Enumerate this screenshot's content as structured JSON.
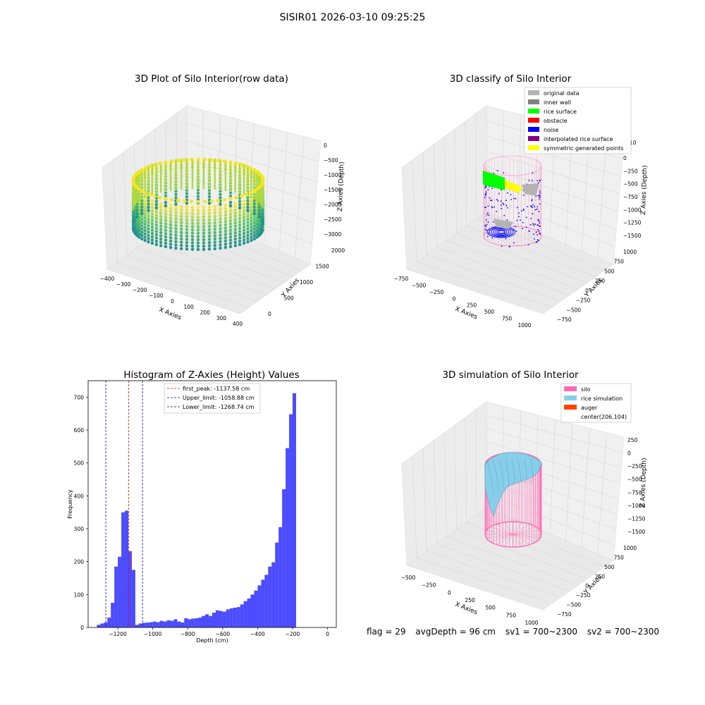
{
  "figure": {
    "suptitle": "SISIR01 2026-03-10 09:25:25"
  },
  "panels": {
    "raw": {
      "title": "3D Plot of Silo Interior(row data)",
      "xlabel": "X Axies",
      "ylabel": "Y Axies",
      "zlabel": "Z Axies (Depth)",
      "xticks": [
        "−400",
        "−300",
        "−200",
        "−100",
        "0",
        "100",
        "200",
        "300",
        "400"
      ],
      "yticks": [
        "0",
        "500",
        "1000",
        "1500",
        "2000"
      ],
      "zticks": [
        "0",
        "−500",
        "−1000",
        "−1500",
        "−2000",
        "−2500",
        "−3000"
      ]
    },
    "classify": {
      "title": "3D classify of Silo Interior",
      "xlabel": "X Axies",
      "ylabel": "Y Axies",
      "zlabel": "Z Axies (Depth)",
      "xticks": [
        "−750",
        "−500",
        "−250",
        "0",
        "250",
        "500",
        "750",
        "1000"
      ],
      "yticks": [
        "−750",
        "−500",
        "−250",
        "0",
        "250",
        "500",
        "750",
        "1000"
      ],
      "zticks": [
        "0",
        "−250",
        "−500",
        "−750",
        "−1000",
        "−1250",
        "−1500"
      ],
      "ztick_top": "10",
      "legend": [
        {
          "label": "original data",
          "color": "#b3b3b3"
        },
        {
          "label": "inner wall",
          "color": "#808080"
        },
        {
          "label": "rice surface",
          "color": "#00ff00"
        },
        {
          "label": "obstacle",
          "color": "#ff0000"
        },
        {
          "label": "noise",
          "color": "#0000ff"
        },
        {
          "label": "interpolated rice surface",
          "color": "#800080"
        },
        {
          "label": "symmetric generated points",
          "color": "#ffff00"
        }
      ]
    },
    "simulation": {
      "title": "3D simulation of Silo Interior",
      "xlabel": "X Axies",
      "ylabel": "Y Axies",
      "zlabel": "Z Axies (Depth)",
      "xticks": [
        "−500",
        "−250",
        "0",
        "250",
        "500",
        "750",
        "1000"
      ],
      "yticks": [
        "−750",
        "−500",
        "−250",
        "0",
        "250",
        "500",
        "750",
        "1000"
      ],
      "zticks": [
        "250",
        "0",
        "−250",
        "−500",
        "−750",
        "−1000",
        "−1250",
        "−1500"
      ],
      "legend": [
        {
          "label": "silo",
          "color": "#ff69b4"
        },
        {
          "label": "rice simulation",
          "color": "#87ceeb"
        },
        {
          "label": "auger",
          "color": "#ff4500"
        },
        {
          "label": "center(206,104)",
          "color": ""
        }
      ]
    },
    "footer": {
      "flag": "flag = 29",
      "avg": "avgDepth = 96 cm",
      "sv1": "sv1 = 700~2300",
      "sv2": "sv2 = 700~2300"
    }
  },
  "chart_data": [
    {
      "type": "bar",
      "title": "Histogram of Z-Axies (Height) Values",
      "xlabel": "Depth (cm)",
      "ylabel": "Frequency",
      "xlim": [
        -1370,
        50
      ],
      "ylim": [
        0,
        750
      ],
      "xticks": [
        -1200,
        -1000,
        -800,
        -600,
        -400,
        -200,
        0
      ],
      "xtick_labels": [
        "−1200",
        "−1000",
        "−800",
        "−600",
        "−400",
        "−200",
        "0"
      ],
      "yticks": [
        0,
        100,
        200,
        300,
        400,
        500,
        600,
        700
      ],
      "ytick_labels": [
        "0",
        "100",
        "200",
        "300",
        "400",
        "500",
        "600",
        "700"
      ],
      "bar_color": "#0000ff",
      "bin_width": 20,
      "bin_starts": [
        -1320,
        -1300,
        -1280,
        -1260,
        -1240,
        -1220,
        -1200,
        -1180,
        -1160,
        -1140,
        -1120,
        -1100,
        -1080,
        -1060,
        -1040,
        -1020,
        -1000,
        -980,
        -960,
        -940,
        -920,
        -900,
        -880,
        -860,
        -840,
        -820,
        -800,
        -780,
        -760,
        -740,
        -720,
        -700,
        -680,
        -660,
        -640,
        -620,
        -600,
        -580,
        -560,
        -540,
        -520,
        -500,
        -480,
        -460,
        -440,
        -420,
        -400,
        -380,
        -360,
        -340,
        -320,
        -300,
        -280,
        -260,
        -240,
        -220,
        -200,
        -180,
        -160,
        -140,
        -120,
        -100,
        -80,
        -60,
        -40,
        -20
      ],
      "values": [
        8,
        12,
        15,
        30,
        75,
        185,
        215,
        350,
        355,
        232,
        175,
        8,
        12,
        14,
        15,
        16,
        18,
        16,
        20,
        18,
        22,
        20,
        25,
        18,
        15,
        28,
        25,
        27,
        28,
        30,
        35,
        40,
        35,
        45,
        52,
        50,
        48,
        55,
        58,
        60,
        62,
        70,
        80,
        88,
        100,
        112,
        128,
        145,
        160,
        185,
        198,
        258,
        305,
        420,
        545,
        648,
        712,
        0,
        0,
        0,
        0,
        0,
        0,
        0,
        0,
        0
      ],
      "vlines": [
        {
          "x": -1137.58,
          "color": "#ff0000",
          "label": "first_peak: -1137.58 cm"
        },
        {
          "x": -1058.88,
          "color": "#0000cc",
          "label": "Upper_limit: -1058.88 cm"
        },
        {
          "x": -1268.74,
          "color": "#0000cc",
          "label": "Lower_limit: -1268.74 cm"
        }
      ],
      "legend_position": "upper center"
    }
  ]
}
